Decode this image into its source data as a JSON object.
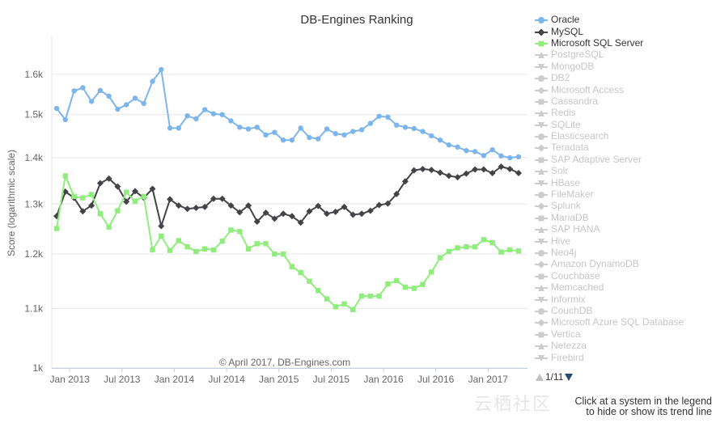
{
  "chart_data": {
    "type": "line",
    "title": "DB-Engines Ranking",
    "ylabel": "Score (logarithmic scale)",
    "xlabel": "",
    "yscale": "log",
    "ylim": [
      1000,
      1700
    ],
    "yticks": [
      {
        "value": 1000,
        "label": "1k"
      },
      {
        "value": 1100,
        "label": "1.1k"
      },
      {
        "value": 1200,
        "label": "1.2k"
      },
      {
        "value": 1300,
        "label": "1.3k"
      },
      {
        "value": 1400,
        "label": "1.4k"
      },
      {
        "value": 1500,
        "label": "1.5k"
      },
      {
        "value": 1600,
        "label": "1.6k"
      }
    ],
    "xticks": [
      {
        "index": 1.5,
        "label": "Jan 2013"
      },
      {
        "index": 7.5,
        "label": "Jul 2013"
      },
      {
        "index": 13.5,
        "label": "Jan 2014"
      },
      {
        "index": 19.5,
        "label": "Jul 2014"
      },
      {
        "index": 25.5,
        "label": "Jan 2015"
      },
      {
        "index": 31.5,
        "label": "Jul 2015"
      },
      {
        "index": 37.5,
        "label": "Jan 2016"
      },
      {
        "index": 43.5,
        "label": "Jul 2016"
      },
      {
        "index": 49.5,
        "label": "Jan 2017"
      }
    ],
    "x_start": "Nov 2012",
    "x_end": "Apr 2017",
    "credits": "© April 2017, DB-Engines.com",
    "series": [
      {
        "name": "Oracle",
        "color": "#7cb5ec",
        "marker": "circle",
        "values": [
          1515,
          1488,
          1558,
          1566,
          1532,
          1559,
          1545,
          1513,
          1524,
          1540,
          1527,
          1582,
          1612,
          1468,
          1468,
          1497,
          1490,
          1512,
          1502,
          1500,
          1485,
          1470,
          1466,
          1470,
          1452,
          1458,
          1440,
          1440,
          1468,
          1446,
          1443,
          1466,
          1455,
          1452,
          1460,
          1464,
          1479,
          1496,
          1494,
          1475,
          1470,
          1467,
          1460,
          1450,
          1440,
          1429,
          1424,
          1416,
          1414,
          1405,
          1418,
          1404,
          1400,
          1402
        ]
      },
      {
        "name": "MySQL",
        "color": "#434348",
        "marker": "diamond",
        "values": [
          1275,
          1326,
          1313,
          1285,
          1297,
          1344,
          1354,
          1337,
          1305,
          1327,
          1313,
          1332,
          1255,
          1310,
          1297,
          1290,
          1292,
          1294,
          1311,
          1311,
          1297,
          1283,
          1297,
          1264,
          1282,
          1270,
          1280,
          1275,
          1262,
          1285,
          1296,
          1280,
          1284,
          1294,
          1278,
          1280,
          1286,
          1298,
          1301,
          1321,
          1348,
          1372,
          1375,
          1373,
          1367,
          1360,
          1357,
          1365,
          1374,
          1374,
          1366,
          1380,
          1375,
          1366
        ]
      },
      {
        "name": "Microsoft SQL Server",
        "color": "#90ed7d",
        "marker": "square",
        "values": [
          1250,
          1360,
          1316,
          1313,
          1320,
          1280,
          1253,
          1286,
          1325,
          1306,
          1316,
          1208,
          1235,
          1207,
          1226,
          1214,
          1205,
          1210,
          1208,
          1225,
          1247,
          1244,
          1210,
          1220,
          1220,
          1200,
          1200,
          1176,
          1165,
          1149,
          1132,
          1117,
          1103,
          1108,
          1098,
          1122,
          1122,
          1122,
          1144,
          1150,
          1138,
          1136,
          1143,
          1166,
          1193,
          1205,
          1212,
          1214,
          1214,
          1228,
          1222,
          1204,
          1208,
          1206
        ]
      }
    ]
  },
  "legend": {
    "items": [
      {
        "label": "Oracle",
        "color": "#7cb5ec",
        "marker": "circle",
        "active": true
      },
      {
        "label": "MySQL",
        "color": "#434348",
        "marker": "diamond",
        "active": true
      },
      {
        "label": "Microsoft SQL Server",
        "color": "#90ed7d",
        "marker": "square",
        "active": true
      },
      {
        "label": "PostgreSQL",
        "color": "#cccccc",
        "marker": "triangle",
        "active": false
      },
      {
        "label": "MongoDB",
        "color": "#cccccc",
        "marker": "triangle-down",
        "active": false
      },
      {
        "label": "DB2",
        "color": "#cccccc",
        "marker": "circle",
        "active": false
      },
      {
        "label": "Microsoft Access",
        "color": "#cccccc",
        "marker": "diamond",
        "active": false
      },
      {
        "label": "Cassandra",
        "color": "#cccccc",
        "marker": "square",
        "active": false
      },
      {
        "label": "Redis",
        "color": "#cccccc",
        "marker": "triangle",
        "active": false
      },
      {
        "label": "SQLite",
        "color": "#cccccc",
        "marker": "triangle-down",
        "active": false
      },
      {
        "label": "Elasticsearch",
        "color": "#cccccc",
        "marker": "circle",
        "active": false
      },
      {
        "label": "Teradata",
        "color": "#cccccc",
        "marker": "diamond",
        "active": false
      },
      {
        "label": "SAP Adaptive Server",
        "color": "#cccccc",
        "marker": "square",
        "active": false
      },
      {
        "label": "Solr",
        "color": "#cccccc",
        "marker": "triangle",
        "active": false
      },
      {
        "label": "HBase",
        "color": "#cccccc",
        "marker": "triangle-down",
        "active": false
      },
      {
        "label": "FileMaker",
        "color": "#cccccc",
        "marker": "circle",
        "active": false
      },
      {
        "label": "Splunk",
        "color": "#cccccc",
        "marker": "diamond",
        "active": false
      },
      {
        "label": "MariaDB",
        "color": "#cccccc",
        "marker": "square",
        "active": false
      },
      {
        "label": "SAP HANA",
        "color": "#cccccc",
        "marker": "triangle",
        "active": false
      },
      {
        "label": "Hive",
        "color": "#cccccc",
        "marker": "triangle-down",
        "active": false
      },
      {
        "label": "Neo4j",
        "color": "#cccccc",
        "marker": "circle",
        "active": false
      },
      {
        "label": "Amazon DynamoDB",
        "color": "#cccccc",
        "marker": "diamond",
        "active": false
      },
      {
        "label": "Couchbase",
        "color": "#cccccc",
        "marker": "square",
        "active": false
      },
      {
        "label": "Memcached",
        "color": "#cccccc",
        "marker": "triangle",
        "active": false
      },
      {
        "label": "Informix",
        "color": "#cccccc",
        "marker": "triangle-down",
        "active": false
      },
      {
        "label": "CouchDB",
        "color": "#cccccc",
        "marker": "circle",
        "active": false
      },
      {
        "label": "Microsoft Azure SQL Database",
        "color": "#cccccc",
        "marker": "diamond",
        "active": false
      },
      {
        "label": "Vertica",
        "color": "#cccccc",
        "marker": "square",
        "active": false
      },
      {
        "label": "Netezza",
        "color": "#cccccc",
        "marker": "triangle",
        "active": false
      },
      {
        "label": "Firebird",
        "color": "#cccccc",
        "marker": "triangle-down",
        "active": false
      }
    ],
    "pager": {
      "text": "1/11"
    }
  },
  "hint": {
    "line1": "Click at a system in the legend",
    "line2": "to hide or show its trend line"
  },
  "watermark": "云栖社区"
}
